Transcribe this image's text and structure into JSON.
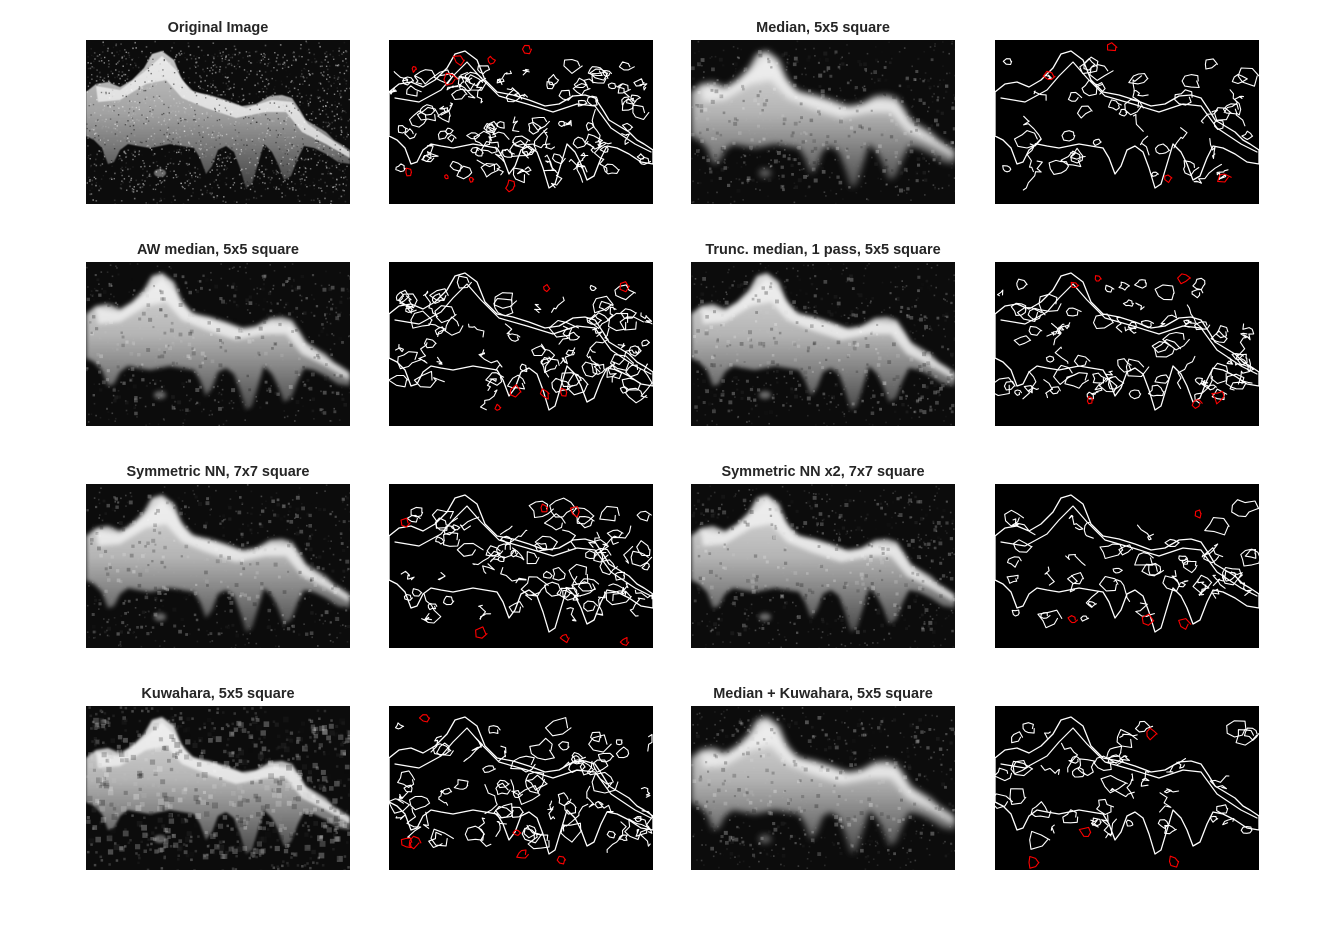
{
  "figure": {
    "panels": [
      {
        "title": "Original Image",
        "kind": "image",
        "style": "noisy"
      },
      {
        "title": "",
        "kind": "edges",
        "style": "dense"
      },
      {
        "title": "Median, 5x5 square",
        "kind": "image",
        "style": "smooth"
      },
      {
        "title": "",
        "kind": "edges",
        "style": "sparse"
      },
      {
        "title": "AW median, 5x5 square",
        "kind": "image",
        "style": "medium"
      },
      {
        "title": "",
        "kind": "edges",
        "style": "medium"
      },
      {
        "title": "Trunc. median, 1 pass, 5x5 square",
        "kind": "image",
        "style": "medium"
      },
      {
        "title": "",
        "kind": "edges",
        "style": "medium"
      },
      {
        "title": "Symmetric NN, 7x7 square",
        "kind": "image",
        "style": "medium"
      },
      {
        "title": "",
        "kind": "edges",
        "style": "medium"
      },
      {
        "title": "Symmetric NN x2, 7x7 square",
        "kind": "image",
        "style": "medium"
      },
      {
        "title": "",
        "kind": "edges",
        "style": "sparse"
      },
      {
        "title": "Kuwahara, 5x5 square",
        "kind": "image",
        "style": "blocky"
      },
      {
        "title": "",
        "kind": "edges",
        "style": "medium"
      },
      {
        "title": "Median + Kuwahara, 5x5 square",
        "kind": "image",
        "style": "smooth"
      },
      {
        "title": "",
        "kind": "edges",
        "style": "sparse"
      }
    ],
    "colors": {
      "background": "#ffffff",
      "image_background": "#000000",
      "edge_main": "#ffffff",
      "edge_minor": "#ff0000",
      "title_text": "#262626"
    }
  }
}
